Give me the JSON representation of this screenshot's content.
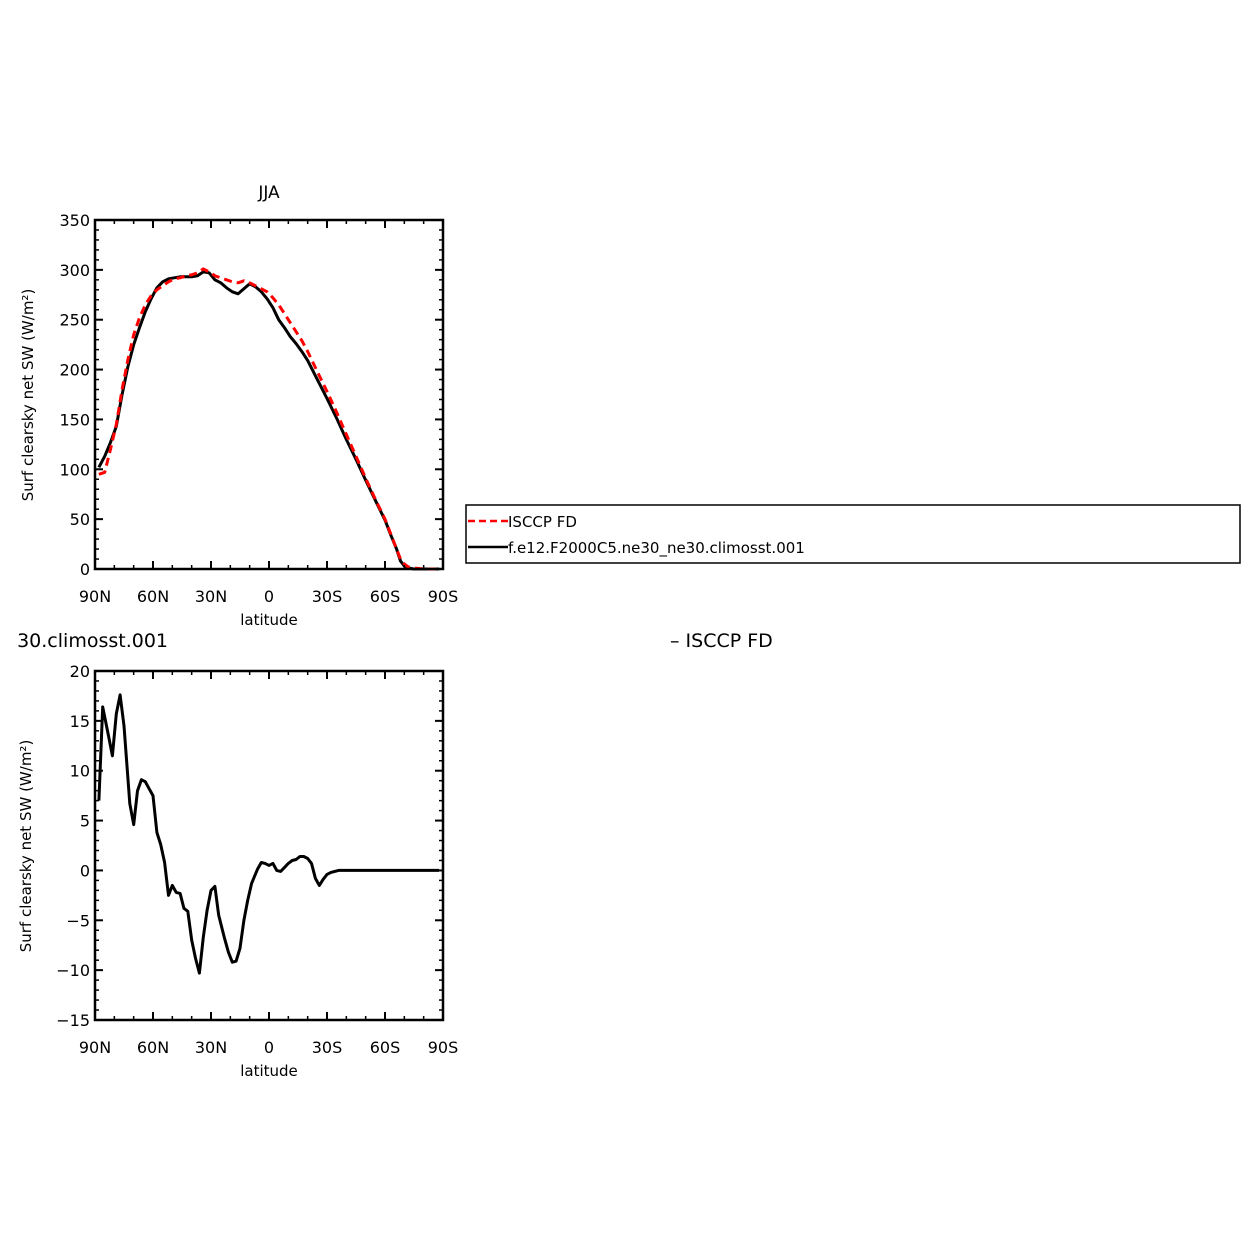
{
  "chart_data": [
    {
      "type": "line",
      "title": "JJA",
      "xlabel": "latitude",
      "ylabel": "Surf clearsky net SW (W/m²)",
      "xlim": [
        90,
        -90
      ],
      "ylim": [
        0,
        350
      ],
      "x_ticks": [
        90,
        60,
        30,
        0,
        -30,
        -60,
        -90
      ],
      "x_tick_labels": [
        "90N",
        "60N",
        "30N",
        "0",
        "30S",
        "60S",
        "90S"
      ],
      "y_ticks": [
        0,
        50,
        100,
        150,
        200,
        250,
        300,
        350
      ],
      "y_tick_labels": [
        "0",
        "50",
        "100",
        "150",
        "200",
        "250",
        "300",
        "350"
      ],
      "legend": {
        "placement": "right, outside plot",
        "entries": [
          "ISCCP FD",
          "f.e12.F2000C5.ne30_ne30.climosst.001"
        ]
      },
      "series": [
        {
          "name": "ISCCP FD",
          "color": "#ff0000",
          "dash": "dashed",
          "points": [
            [
              88,
              95
            ],
            [
              85,
              97
            ],
            [
              82,
              120
            ],
            [
              79,
              145
            ],
            [
              76,
              180
            ],
            [
              73,
              210
            ],
            [
              70,
              235
            ],
            [
              67,
              252
            ],
            [
              64,
              265
            ],
            [
              61,
              274
            ],
            [
              58,
              280
            ],
            [
              55,
              284
            ],
            [
              52,
              288
            ],
            [
              49,
              291
            ],
            [
              46,
              292
            ],
            [
              43,
              294
            ],
            [
              40,
              295
            ],
            [
              37,
              297
            ],
            [
              34,
              301
            ],
            [
              31,
              298
            ],
            [
              28,
              294
            ],
            [
              25,
              292
            ],
            [
              22,
              290
            ],
            [
              19,
              288
            ],
            [
              16,
              287
            ],
            [
              13,
              289
            ],
            [
              10,
              287
            ],
            [
              7,
              284
            ],
            [
              4,
              281
            ],
            [
              1,
              278
            ],
            [
              -2,
              272
            ],
            [
              -5,
              265
            ],
            [
              -8,
              256
            ],
            [
              -11,
              247
            ],
            [
              -14,
              238
            ],
            [
              -17,
              229
            ],
            [
              -20,
              218
            ],
            [
              -25,
              198
            ],
            [
              -30,
              178
            ],
            [
              -35,
              157
            ],
            [
              -40,
              135
            ],
            [
              -45,
              113
            ],
            [
              -50,
              91
            ],
            [
              -55,
              70
            ],
            [
              -60,
              50
            ],
            [
              -63,
              35
            ],
            [
              -66,
              20
            ],
            [
              -68,
              10
            ],
            [
              -70,
              5
            ],
            [
              -72,
              2
            ],
            [
              -75,
              1
            ],
            [
              -80,
              0
            ],
            [
              -85,
              0
            ],
            [
              -88,
              0
            ]
          ]
        },
        {
          "name": "f.e12.F2000C5.ne30_ne30.climosst.001",
          "color": "#000000",
          "dash": "solid",
          "points": [
            [
              88,
              102
            ],
            [
              85,
              113
            ],
            [
              82,
              127
            ],
            [
              79,
              143
            ],
            [
              76,
              175
            ],
            [
              73,
              203
            ],
            [
              70,
              225
            ],
            [
              67,
              242
            ],
            [
              64,
              258
            ],
            [
              61,
              271
            ],
            [
              58,
              282
            ],
            [
              55,
              288
            ],
            [
              52,
              291
            ],
            [
              49,
              292
            ],
            [
              46,
              293
            ],
            [
              43,
              293
            ],
            [
              40,
              293
            ],
            [
              37,
              294
            ],
            [
              34,
              298
            ],
            [
              31,
              297
            ],
            [
              28,
              290
            ],
            [
              25,
              287
            ],
            [
              22,
              282
            ],
            [
              19,
              278
            ],
            [
              16,
              276
            ],
            [
              13,
              281
            ],
            [
              10,
              286
            ],
            [
              7,
              283
            ],
            [
              4,
              278
            ],
            [
              1,
              271
            ],
            [
              -2,
              262
            ],
            [
              -5,
              250
            ],
            [
              -8,
              242
            ],
            [
              -11,
              233
            ],
            [
              -14,
              226
            ],
            [
              -17,
              218
            ],
            [
              -20,
              209
            ],
            [
              -25,
              190
            ],
            [
              -30,
              171
            ],
            [
              -35,
              151
            ],
            [
              -40,
              130
            ],
            [
              -45,
              110
            ],
            [
              -50,
              89
            ],
            [
              -55,
              69
            ],
            [
              -60,
              49
            ],
            [
              -63,
              34
            ],
            [
              -66,
              20
            ],
            [
              -68,
              8
            ],
            [
              -70,
              3
            ],
            [
              -72,
              1
            ],
            [
              -75,
              0
            ],
            [
              -80,
              0
            ],
            [
              -85,
              0
            ],
            [
              -88,
              0
            ]
          ]
        }
      ]
    },
    {
      "type": "line",
      "title": "30.climosst.001",
      "xlabel": "latitude",
      "ylabel": "Surf clearsky net SW (W/m²)",
      "xlim": [
        90,
        -90
      ],
      "ylim": [
        -15,
        20
      ],
      "x_ticks": [
        90,
        60,
        30,
        0,
        -30,
        -60,
        -90
      ],
      "x_tick_labels": [
        "90N",
        "60N",
        "30N",
        "0",
        "30S",
        "60S",
        "90S"
      ],
      "y_ticks": [
        -15,
        -10,
        -5,
        0,
        5,
        10,
        15,
        20
      ],
      "y_tick_labels": [
        "−15",
        "−10",
        "−5",
        "0",
        "5",
        "10",
        "15",
        "20"
      ],
      "legend_text": "– ISCCP FD",
      "series": [
        {
          "color": "#000000",
          "dash": "solid",
          "points": [
            [
              88,
              7
            ],
            [
              86,
              16.4
            ],
            [
              83,
              13.5
            ],
            [
              81,
              11.5
            ],
            [
              79,
              15.7
            ],
            [
              77,
              17.6
            ],
            [
              75,
              14.5
            ],
            [
              72,
              6.7
            ],
            [
              70,
              4.6
            ],
            [
              68,
              8
            ],
            [
              66,
              9.1
            ],
            [
              64,
              8.9
            ],
            [
              62,
              8.2
            ],
            [
              60,
              7.5
            ],
            [
              58,
              3.8
            ],
            [
              56,
              2.6
            ],
            [
              54,
              0.8
            ],
            [
              52,
              -2.5
            ],
            [
              50,
              -1.5
            ],
            [
              48,
              -2.2
            ],
            [
              46,
              -2.3
            ],
            [
              44,
              -3.8
            ],
            [
              42,
              -4.1
            ],
            [
              40,
              -7
            ],
            [
              38,
              -8.8
            ],
            [
              36,
              -10.3
            ],
            [
              34,
              -6.7
            ],
            [
              32,
              -4
            ],
            [
              30,
              -2
            ],
            [
              28,
              -1.6
            ],
            [
              26,
              -4.5
            ],
            [
              23,
              -6.8
            ],
            [
              21,
              -8.2
            ],
            [
              19,
              -9.2
            ],
            [
              17,
              -9.1
            ],
            [
              15,
              -7.8
            ],
            [
              13,
              -5
            ],
            [
              11,
              -3
            ],
            [
              9,
              -1.3
            ],
            [
              6,
              0.1
            ],
            [
              4,
              0.8
            ],
            [
              2,
              0.7
            ],
            [
              0,
              0.5
            ],
            [
              -2,
              0.7
            ],
            [
              -4,
              0
            ],
            [
              -6,
              -0.1
            ],
            [
              -8,
              0.3
            ],
            [
              -10,
              0.7
            ],
            [
              -12,
              1
            ],
            [
              -14,
              1.1
            ],
            [
              -16,
              1.4
            ],
            [
              -18,
              1.4
            ],
            [
              -20,
              1.2
            ],
            [
              -22,
              0.7
            ],
            [
              -24,
              -0.8
            ],
            [
              -26,
              -1.5
            ],
            [
              -28,
              -0.9
            ],
            [
              -30,
              -0.4
            ],
            [
              -32,
              -0.2
            ],
            [
              -34,
              -0.1
            ],
            [
              -36,
              0
            ],
            [
              -40,
              0
            ],
            [
              -45,
              0
            ],
            [
              -50,
              0
            ],
            [
              -55,
              0
            ],
            [
              -60,
              0
            ],
            [
              -65,
              0
            ],
            [
              -70,
              0
            ],
            [
              -75,
              0
            ],
            [
              -80,
              0
            ],
            [
              -85,
              0
            ],
            [
              -88,
              0
            ]
          ]
        }
      ]
    }
  ]
}
